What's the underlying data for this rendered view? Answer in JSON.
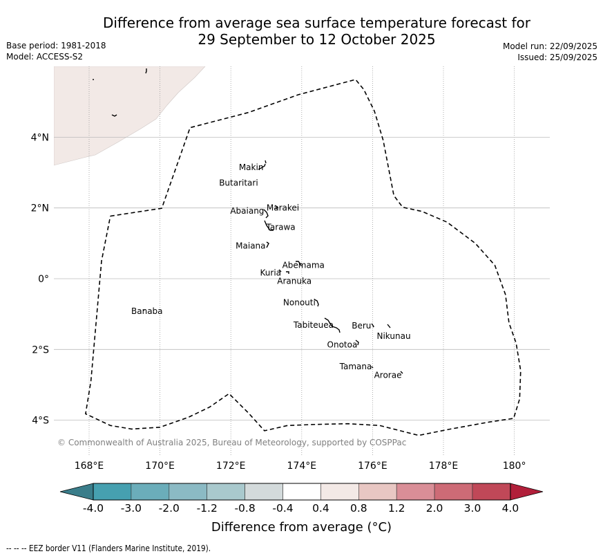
{
  "title": {
    "line1": "Difference from average sea surface temperature forecast for",
    "line2": "29 September to 12 October 2025"
  },
  "meta": {
    "base_period": "Base period: 1981-2018",
    "model": "Model: ACCESS-S2",
    "model_run": "Model run: 22/09/2025",
    "issued": "Issued: 25/09/2025"
  },
  "map": {
    "region": "Kiribati (Gilbert Islands)",
    "x_ticks": [
      {
        "lon": 168,
        "label": "168°E"
      },
      {
        "lon": 170,
        "label": "170°E"
      },
      {
        "lon": 172,
        "label": "172°E"
      },
      {
        "lon": 174,
        "label": "174°E"
      },
      {
        "lon": 176,
        "label": "176°E"
      },
      {
        "lon": 178,
        "label": "178°E"
      },
      {
        "lon": 180,
        "label": "180°"
      }
    ],
    "y_ticks": [
      {
        "lat": 4,
        "label": "4°N"
      },
      {
        "lat": 2,
        "label": "2°N"
      },
      {
        "lat": 0,
        "label": "0°"
      },
      {
        "lat": -2,
        "label": "2°S"
      },
      {
        "lat": -4,
        "label": "4°S"
      }
    ],
    "lon_range": [
      167,
      181
    ],
    "lat_range": [
      -4.9,
      6.1
    ],
    "anomaly_shading": {
      "color": "#f2e9e6",
      "category": "0.4 to 0.8",
      "area": "north-west corner"
    },
    "eez_border": [
      [
        168.6,
        1.77
      ],
      [
        170.05,
        1.99
      ],
      [
        170.85,
        4.27
      ],
      [
        172.5,
        4.7
      ],
      [
        173.9,
        5.2
      ],
      [
        175.52,
        5.63
      ],
      [
        175.75,
        5.35
      ],
      [
        176.05,
        4.74
      ],
      [
        176.3,
        3.91
      ],
      [
        176.6,
        2.35
      ],
      [
        176.85,
        2.02
      ],
      [
        177.4,
        1.9
      ],
      [
        178.1,
        1.6
      ],
      [
        178.9,
        1.0
      ],
      [
        179.45,
        0.38
      ],
      [
        179.75,
        -0.45
      ],
      [
        179.85,
        -1.25
      ],
      [
        180.05,
        -1.82
      ],
      [
        180.18,
        -2.6
      ],
      [
        180.15,
        -3.4
      ],
      [
        179.98,
        -3.95
      ],
      [
        179.3,
        -4.05
      ],
      [
        178.2,
        -4.25
      ],
      [
        177.3,
        -4.43
      ],
      [
        176.2,
        -4.15
      ],
      [
        175.3,
        -4.1
      ],
      [
        174.4,
        -4.12
      ],
      [
        173.6,
        -4.15
      ],
      [
        172.95,
        -4.3
      ],
      [
        172.5,
        -3.8
      ],
      [
        171.95,
        -3.25
      ],
      [
        171.4,
        -3.63
      ],
      [
        170.8,
        -3.92
      ],
      [
        170.0,
        -4.2
      ],
      [
        169.2,
        -4.25
      ],
      [
        168.6,
        -4.15
      ],
      [
        167.9,
        -3.82
      ],
      [
        168.05,
        -2.9
      ],
      [
        168.2,
        -1.2
      ],
      [
        168.35,
        0.5
      ],
      [
        168.6,
        1.77
      ]
    ],
    "places": [
      {
        "name": "Makin",
        "lon": 172.96,
        "lat": 3.17
      },
      {
        "name": "Butaritari",
        "lon": 172.77,
        "lat": 3.04
      },
      {
        "name": "Marakei",
        "lon": 173.3,
        "lat": 2.0
      },
      {
        "name": "Abaiang",
        "lon": 172.94,
        "lat": 1.84
      },
      {
        "name": "Tarawa",
        "lon": 173.0,
        "lat": 1.42
      },
      {
        "name": "Maiana",
        "lon": 173.02,
        "lat": 0.93
      },
      {
        "name": "Abemama",
        "lon": 173.84,
        "lat": 0.42
      },
      {
        "name": "Kuria",
        "lon": 173.42,
        "lat": 0.21
      },
      {
        "name": "Aranuka",
        "lon": 173.6,
        "lat": 0.17
      },
      {
        "name": "Nonouti",
        "lon": 174.41,
        "lat": -0.67
      },
      {
        "name": "Tabiteuea",
        "lon": 174.9,
        "lat": -1.33
      },
      {
        "name": "Beru",
        "lon": 176.0,
        "lat": -1.33
      },
      {
        "name": "Nikunau",
        "lon": 176.45,
        "lat": -1.35
      },
      {
        "name": "Onotoa",
        "lon": 175.57,
        "lat": -1.85
      },
      {
        "name": "Tamana",
        "lon": 175.98,
        "lat": -2.5
      },
      {
        "name": "Arorae",
        "lon": 176.82,
        "lat": -2.65
      },
      {
        "name": "Banaba",
        "lon": 169.54,
        "lat": -0.86
      }
    ],
    "copyright": "© Commonwealth of Australia 2025, Bureau of Meteorology, supported by COSPPac"
  },
  "colorbar": {
    "label": "Difference from average (°C)",
    "label_prefix": "Difference from average (",
    "label_unit": "°C)",
    "ticks": [
      "-4.0",
      "-3.0",
      "-2.0",
      "-1.2",
      "-0.8",
      "-0.4",
      "0.4",
      "0.8",
      "1.2",
      "2.0",
      "3.0",
      "4.0"
    ],
    "under_color": "#3a7d8a",
    "over_color": "#b11f3a",
    "bins": [
      {
        "from": -4.0,
        "to": -3.0,
        "color": "#46a0b0"
      },
      {
        "from": -3.0,
        "to": -2.0,
        "color": "#6badba"
      },
      {
        "from": -2.0,
        "to": -1.2,
        "color": "#8bbac4"
      },
      {
        "from": -1.2,
        "to": -0.8,
        "color": "#a9c9cd"
      },
      {
        "from": -0.8,
        "to": -0.4,
        "color": "#d3dadb"
      },
      {
        "from": -0.4,
        "to": 0.4,
        "color": "#ffffff"
      },
      {
        "from": 0.4,
        "to": 0.8,
        "color": "#f3e9e6"
      },
      {
        "from": 0.8,
        "to": 1.2,
        "color": "#e8c7c3"
      },
      {
        "from": 1.2,
        "to": 2.0,
        "color": "#d98e97"
      },
      {
        "from": 2.0,
        "to": 3.0,
        "color": "#cd6b76"
      },
      {
        "from": 3.0,
        "to": 4.0,
        "color": "#c04858"
      }
    ]
  },
  "footnote": "--  --  -- EEZ border V11 (Flanders Marine Institute, 2019)."
}
